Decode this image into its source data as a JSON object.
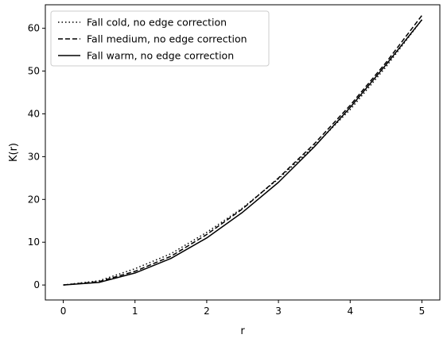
{
  "chart_data": {
    "type": "line",
    "title": "",
    "xlabel": "r",
    "ylabel": "K(r)",
    "xlim": [
      -0.25,
      5.25
    ],
    "ylim": [
      -3.5,
      65.5
    ],
    "xticks": [
      0,
      1,
      2,
      3,
      4,
      5
    ],
    "yticks": [
      0,
      10,
      20,
      30,
      40,
      50,
      60
    ],
    "grid": false,
    "legend_position": "top-left",
    "x": [
      0,
      0.5,
      1.0,
      1.5,
      2.0,
      2.5,
      3.0,
      3.5,
      4.0,
      4.5,
      5.0
    ],
    "series": [
      {
        "name": "Fall cold, no edge correction",
        "style": "dotted",
        "color": "#000000",
        "values": [
          0.0,
          1.0,
          3.8,
          7.3,
          12.3,
          18.0,
          24.8,
          32.5,
          41.0,
          51.0,
          62.0
        ]
      },
      {
        "name": "Fall medium, no edge correction",
        "style": "dashed",
        "color": "#000000",
        "values": [
          0.0,
          0.8,
          3.2,
          6.7,
          11.8,
          17.8,
          25.0,
          33.0,
          42.0,
          52.0,
          63.0
        ]
      },
      {
        "name": "Fall warm, no edge correction",
        "style": "solid",
        "color": "#000000",
        "values": [
          0.0,
          0.6,
          2.8,
          6.2,
          11.0,
          17.0,
          24.0,
          32.3,
          41.5,
          51.5,
          62.0
        ]
      }
    ]
  }
}
